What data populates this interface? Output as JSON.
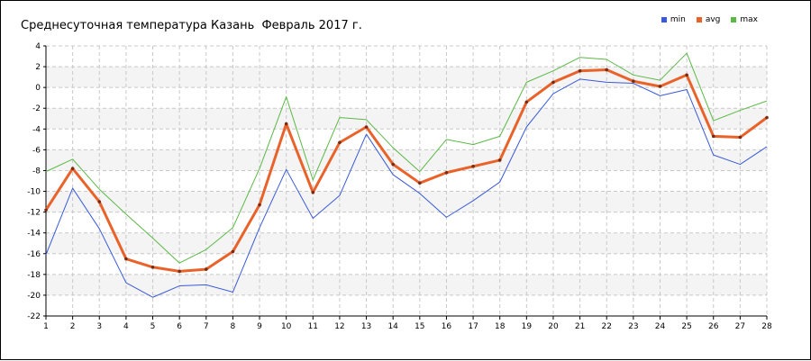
{
  "chart_data": {
    "type": "line",
    "title": "Среднесуточная температура Казань  Февраль 2017 г.",
    "xlabel": "",
    "ylabel": "",
    "x": [
      1,
      2,
      3,
      4,
      5,
      6,
      7,
      8,
      9,
      10,
      11,
      12,
      13,
      14,
      15,
      16,
      17,
      18,
      19,
      20,
      21,
      22,
      23,
      24,
      25,
      26,
      27,
      28
    ],
    "xlim": [
      1,
      28
    ],
    "ylim": [
      -22,
      4
    ],
    "yticks": [
      4,
      2,
      0,
      -2,
      -4,
      -6,
      -8,
      -10,
      -12,
      -14,
      -16,
      -18,
      -20,
      -22
    ],
    "xticks": [
      1,
      2,
      3,
      4,
      5,
      6,
      7,
      8,
      9,
      10,
      11,
      12,
      13,
      14,
      15,
      16,
      17,
      18,
      19,
      20,
      21,
      22,
      23,
      24,
      25,
      26,
      27,
      28
    ],
    "grid": true,
    "legend_position": "top-right",
    "series": [
      {
        "name": "min",
        "color": "#3a5ad8",
        "values": [
          -16.1,
          -9.7,
          -13.6,
          -18.8,
          -20.2,
          -19.1,
          -19.0,
          -19.7,
          -13.5,
          -7.9,
          -12.6,
          -10.4,
          -4.5,
          -8.4,
          -10.2,
          -12.5,
          -10.9,
          -9.1,
          -3.8,
          -0.6,
          0.8,
          0.5,
          0.4,
          -0.8,
          -0.2,
          -6.5,
          -7.4,
          -5.7
        ]
      },
      {
        "name": "avg",
        "color": "#e8622a",
        "values": [
          -11.8,
          -7.8,
          -11.0,
          -16.5,
          -17.3,
          -17.7,
          -17.5,
          -15.8,
          -11.3,
          -3.5,
          -10.1,
          -5.3,
          -3.8,
          -7.4,
          -9.2,
          -8.2,
          -7.6,
          -7.0,
          -1.4,
          0.5,
          1.6,
          1.7,
          0.6,
          0.1,
          1.2,
          -4.7,
          -4.8,
          -2.9
        ]
      },
      {
        "name": "max",
        "color": "#5ab844",
        "values": [
          -8.1,
          -6.9,
          -9.8,
          -12.2,
          -14.5,
          -16.9,
          -15.6,
          -13.5,
          -7.8,
          -0.9,
          -8.9,
          -2.9,
          -3.1,
          -5.8,
          -8.1,
          -5.0,
          -5.5,
          -4.7,
          0.5,
          1.6,
          2.9,
          2.7,
          1.2,
          0.7,
          3.3,
          -3.2,
          -2.2,
          -1.3
        ]
      }
    ]
  }
}
